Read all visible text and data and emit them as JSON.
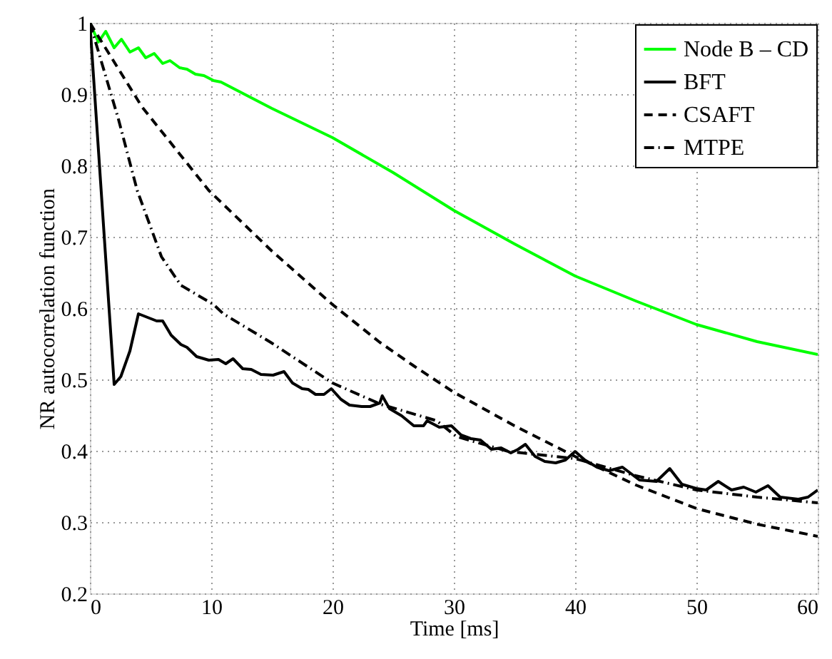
{
  "chart_data": {
    "type": "line",
    "xlabel": "Time [ms]",
    "ylabel": "NR autocorrelation function",
    "xlim": [
      0,
      60
    ],
    "ylim": [
      0.2,
      1
    ],
    "xticks": [
      0,
      10,
      20,
      30,
      40,
      50,
      60
    ],
    "yticks": [
      0.2,
      0.3,
      0.4,
      0.5,
      0.6,
      0.7,
      0.8,
      0.9,
      1
    ],
    "grid": true,
    "legend": "top right",
    "series": [
      {
        "name": "Node B – CD",
        "color": "#00ff00",
        "line_style": "solid",
        "x": [
          0,
          0.7,
          1.3,
          2.0,
          2.6,
          3.3,
          4.0,
          4.6,
          5.3,
          6.0,
          6.6,
          7.4,
          8.0,
          8.7,
          9.4,
          10.2,
          10.8,
          15,
          20,
          25,
          30,
          35,
          40,
          45,
          50,
          55,
          60
        ],
        "values": [
          1,
          0.973,
          0.988,
          0.965,
          0.977,
          0.959,
          0.965,
          0.951,
          0.957,
          0.943,
          0.947,
          0.937,
          0.935,
          0.928,
          0.926,
          0.919,
          0.917,
          0.88,
          0.839,
          0.79,
          0.737,
          0.69,
          0.645,
          0.61,
          0.577,
          0.553,
          0.535
        ]
      },
      {
        "name": "BFT",
        "color": "#000000",
        "line_style": "solid",
        "x": [
          0,
          2.0,
          2.55,
          3.3,
          4.0,
          5.5,
          6.0,
          6.7,
          7.5,
          8.0,
          8.8,
          9.8,
          10.6,
          11.2,
          11.8,
          12.6,
          13.3,
          14.1,
          15.1,
          16,
          16.7,
          17.5,
          18,
          18.6,
          19.3,
          19.9,
          20.7,
          21.4,
          22.4,
          23.1,
          23.9,
          24.1,
          24.7,
          25.7,
          26.7,
          27.5,
          27.8,
          28.8,
          29.8,
          30.6,
          31.4,
          32.2,
          33.1,
          33.9,
          34.7,
          35.3,
          35.9,
          36.7,
          37.5,
          38.4,
          39.2,
          40,
          40.8,
          41.8,
          42.8,
          43.9,
          45.3,
          46.7,
          47.8,
          48.8,
          50,
          50.8,
          51.8,
          52.9,
          53.9,
          54.9,
          55.9,
          56.9,
          58.4,
          59.2,
          60
        ],
        "values": [
          1,
          0.493,
          0.504,
          0.54,
          0.592,
          0.582,
          0.582,
          0.562,
          0.549,
          0.545,
          0.532,
          0.527,
          0.528,
          0.522,
          0.529,
          0.515,
          0.514,
          0.507,
          0.506,
          0.511,
          0.495,
          0.487,
          0.486,
          0.479,
          0.479,
          0.487,
          0.472,
          0.464,
          0.462,
          0.462,
          0.467,
          0.477,
          0.459,
          0.449,
          0.435,
          0.435,
          0.442,
          0.433,
          0.435,
          0.422,
          0.417,
          0.415,
          0.402,
          0.404,
          0.397,
          0.402,
          0.409,
          0.392,
          0.385,
          0.383,
          0.387,
          0.399,
          0.387,
          0.377,
          0.372,
          0.377,
          0.359,
          0.357,
          0.375,
          0.353,
          0.347,
          0.345,
          0.357,
          0.345,
          0.349,
          0.342,
          0.351,
          0.335,
          0.332,
          0.335,
          0.345
        ]
      },
      {
        "name": "CSAFT",
        "color": "#000000",
        "line_style": "dashed",
        "x": [
          0,
          4.3,
          9.8,
          15,
          20,
          23.9,
          26.7,
          30,
          35,
          40,
          45,
          50,
          55,
          60
        ],
        "values": [
          1,
          0.882,
          0.765,
          0.68,
          0.605,
          0.552,
          0.519,
          0.482,
          0.435,
          0.392,
          0.352,
          0.319,
          0.297,
          0.28
        ]
      },
      {
        "name": "MTPE",
        "color": "#000000",
        "line_style": "dashdot",
        "x": [
          0,
          2.35,
          3.9,
          5.9,
          7.5,
          10.2,
          11,
          14.9,
          20,
          24,
          28.6,
          30.2,
          34.5,
          40,
          45,
          50,
          55,
          60
        ],
        "values": [
          1,
          0.865,
          0.765,
          0.672,
          0.632,
          0.605,
          0.592,
          0.552,
          0.495,
          0.465,
          0.442,
          0.42,
          0.399,
          0.389,
          0.365,
          0.345,
          0.335,
          0.327
        ]
      }
    ]
  }
}
